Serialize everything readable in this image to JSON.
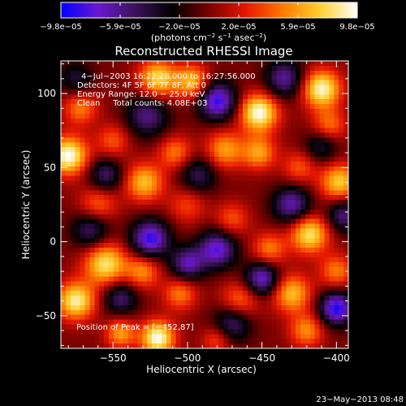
{
  "chart_data": {
    "type": "heatmap",
    "title": "Reconstructed RHESSI Image",
    "xlabel": "Heliocentric X (arcsec)",
    "ylabel": "Heliocentric Y (arcsec)",
    "xlim": [
      -585,
      -392
    ],
    "ylim": [
      -72,
      122
    ],
    "x_ticks": [
      -550,
      -500,
      -450,
      -400
    ],
    "x_tick_labels": [
      "−550",
      "−500",
      "−450",
      "−400"
    ],
    "y_ticks": [
      -50,
      0,
      50,
      100
    ],
    "y_tick_labels": [
      "−50",
      "0",
      "50",
      "100"
    ],
    "colorbar": {
      "range": [
        -9.8e-05,
        9.8e-05
      ],
      "tick_labels": [
        "−9.8e−05",
        "−5.9e−05",
        "−2.0e−05",
        "2.0e−05",
        "5.9e−05",
        "9.8e−05"
      ],
      "units_prefix": "(photons cm",
      "units_exp1": "−2",
      "units_mid": " s",
      "units_exp2": "−1",
      "units_mid2": " asec",
      "units_exp3": "−2",
      "units_suffix": ")",
      "colors": [
        "#0000ff",
        "#6a18d0",
        "#3c1258",
        "#000000",
        "#7a0000",
        "#e61800",
        "#ff7a00",
        "#ffd030",
        "#ffffff"
      ]
    },
    "annotations": [
      "4−Jul−2003 16:22:28.000 to 16:27:56.000",
      "Detectors: 4F 5F 6F 7F 8F, Att 0",
      "Energy Range: 12.0 − 25.0 keV",
      "Clean     Total counts: 4.08E+03"
    ],
    "peak_label": "Position of Peak = [−452,87]",
    "peak": [
      -452,
      87
    ],
    "blobs": [
      {
        "x": -520,
        "y": 110,
        "v": 0.8,
        "s": 9
      },
      {
        "x": -497,
        "y": 108,
        "v": 0.7,
        "s": 8
      },
      {
        "x": -572,
        "y": 90,
        "v": 0.5,
        "s": 8
      },
      {
        "x": -580,
        "y": 58,
        "v": 1.0,
        "s": 9
      },
      {
        "x": -550,
        "y": 68,
        "v": 0.4,
        "s": 8
      },
      {
        "x": -529,
        "y": 40,
        "v": 0.7,
        "s": 9
      },
      {
        "x": -508,
        "y": 60,
        "v": 0.5,
        "s": 8
      },
      {
        "x": -475,
        "y": 62,
        "v": 0.6,
        "s": 9
      },
      {
        "x": -452,
        "y": 87,
        "v": 1.0,
        "s": 9
      },
      {
        "x": -452,
        "y": 60,
        "v": 0.6,
        "s": 8
      },
      {
        "x": -410,
        "y": 103,
        "v": 0.95,
        "s": 9
      },
      {
        "x": -405,
        "y": 78,
        "v": 0.5,
        "s": 8
      },
      {
        "x": -425,
        "y": 50,
        "v": 0.4,
        "s": 8
      },
      {
        "x": -398,
        "y": 40,
        "v": 0.75,
        "s": 9
      },
      {
        "x": -560,
        "y": 25,
        "v": 0.45,
        "s": 9
      },
      {
        "x": -500,
        "y": 25,
        "v": 0.35,
        "s": 9
      },
      {
        "x": -418,
        "y": 5,
        "v": 0.85,
        "s": 9
      },
      {
        "x": -445,
        "y": -5,
        "v": 0.5,
        "s": 8
      },
      {
        "x": -470,
        "y": 15,
        "v": 0.4,
        "s": 8
      },
      {
        "x": -555,
        "y": -15,
        "v": 0.85,
        "s": 10
      },
      {
        "x": -575,
        "y": -40,
        "v": 0.9,
        "s": 9
      },
      {
        "x": -530,
        "y": -20,
        "v": 0.55,
        "s": 8
      },
      {
        "x": -505,
        "y": -35,
        "v": 0.5,
        "s": 8
      },
      {
        "x": -465,
        "y": -40,
        "v": 0.5,
        "s": 9
      },
      {
        "x": -430,
        "y": -35,
        "v": 0.7,
        "s": 9
      },
      {
        "x": -420,
        "y": -60,
        "v": 0.55,
        "s": 8
      },
      {
        "x": -520,
        "y": -65,
        "v": 1.0,
        "s": 8
      },
      {
        "x": -545,
        "y": -62,
        "v": 0.6,
        "s": 7
      },
      {
        "x": -480,
        "y": -66,
        "v": 0.4,
        "s": 7
      },
      {
        "x": -400,
        "y": -20,
        "v": 0.5,
        "s": 8
      },
      {
        "x": -527,
        "y": 85,
        "v": -0.6,
        "s": 10
      },
      {
        "x": -480,
        "y": 95,
        "v": -0.9,
        "s": 9
      },
      {
        "x": -435,
        "y": 110,
        "v": -0.65,
        "s": 9
      },
      {
        "x": -555,
        "y": 45,
        "v": -0.55,
        "s": 8
      },
      {
        "x": -493,
        "y": 45,
        "v": -0.5,
        "s": 9
      },
      {
        "x": -565,
        "y": 8,
        "v": -0.55,
        "s": 9
      },
      {
        "x": -525,
        "y": 2,
        "v": -0.9,
        "s": 9
      },
      {
        "x": -480,
        "y": -5,
        "v": -0.8,
        "s": 9
      },
      {
        "x": -500,
        "y": -15,
        "v": -0.7,
        "s": 8
      },
      {
        "x": -430,
        "y": 25,
        "v": -0.7,
        "s": 9
      },
      {
        "x": -395,
        "y": 18,
        "v": -0.6,
        "s": 8
      },
      {
        "x": -545,
        "y": -38,
        "v": -0.55,
        "s": 8
      },
      {
        "x": -450,
        "y": -25,
        "v": -0.8,
        "s": 8
      },
      {
        "x": -470,
        "y": -55,
        "v": -0.6,
        "s": 9
      },
      {
        "x": -400,
        "y": -45,
        "v": -0.95,
        "s": 8
      },
      {
        "x": -410,
        "y": 65,
        "v": -0.45,
        "s": 8
      },
      {
        "x": -575,
        "y": 110,
        "v": -0.4,
        "s": 8
      }
    ]
  },
  "footer": {
    "date": "23−May−2013 08:48"
  }
}
